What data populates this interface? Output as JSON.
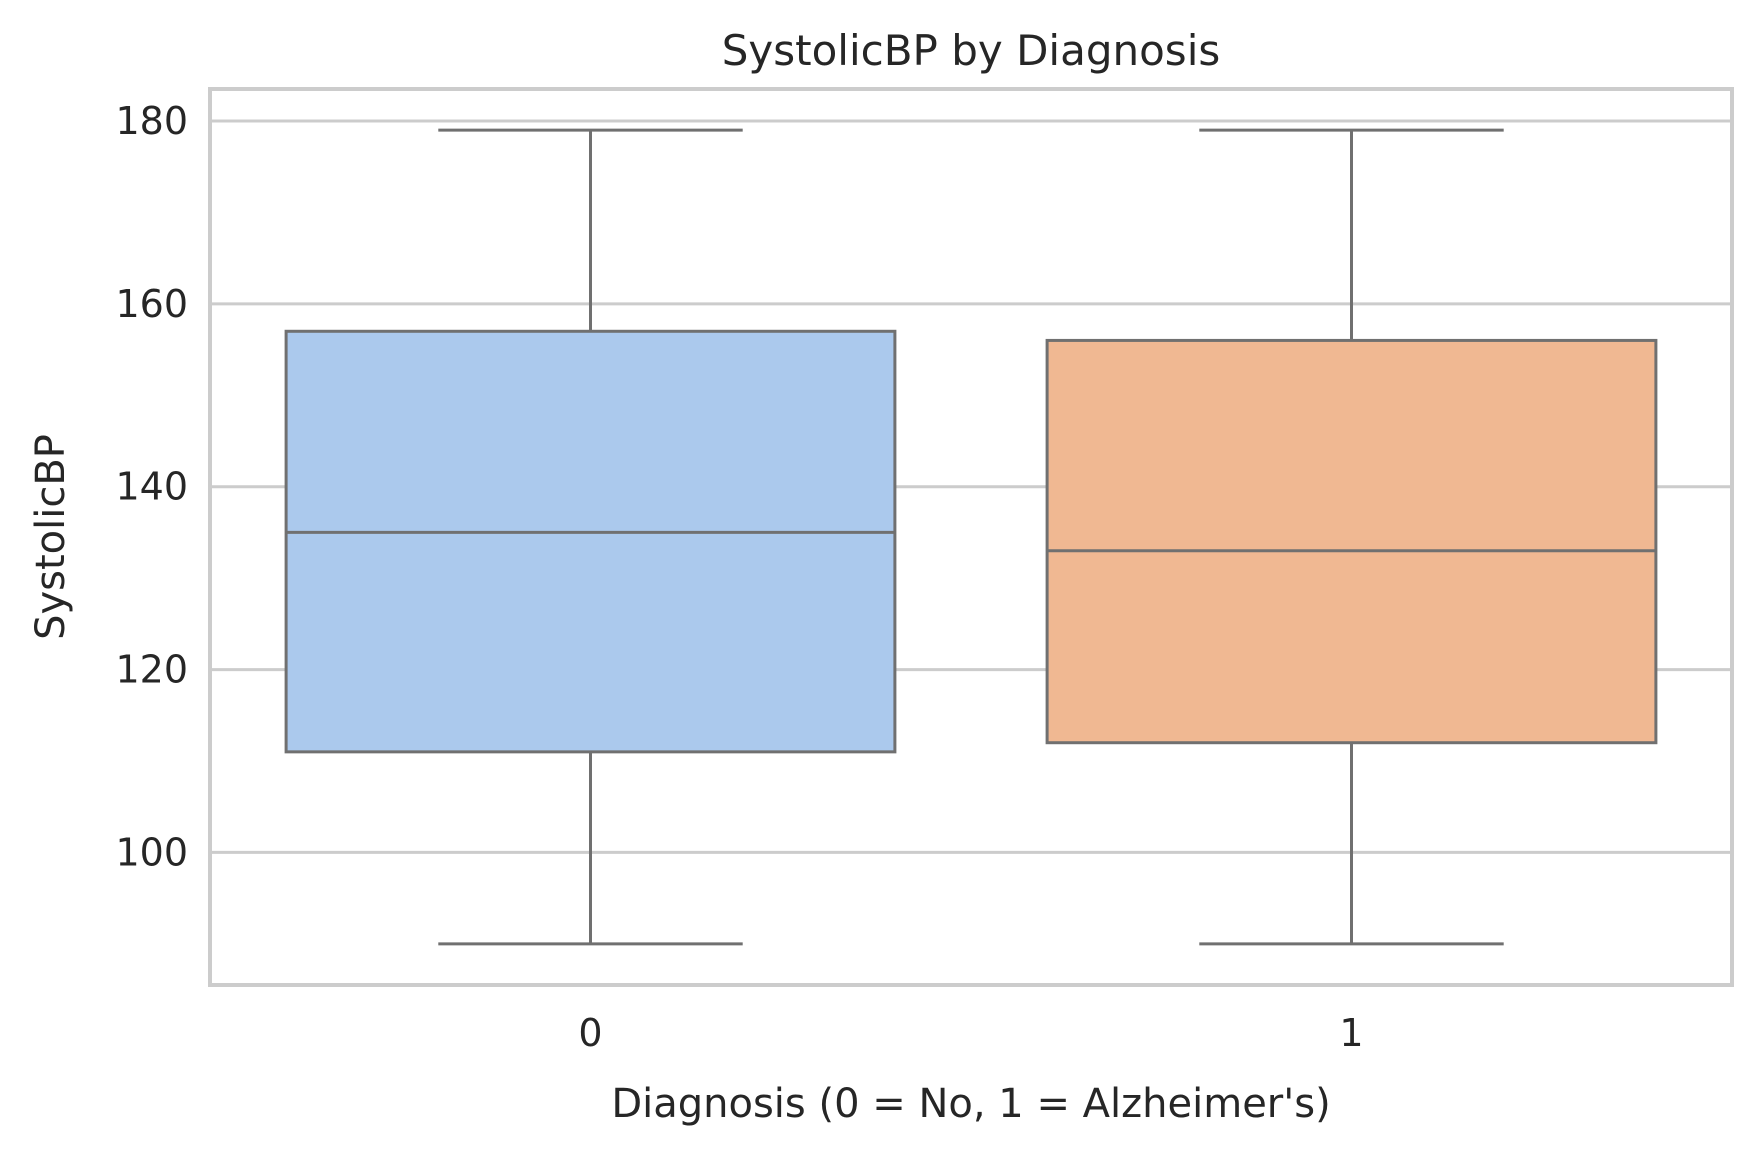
{
  "chart_data": {
    "type": "box",
    "title": "SystolicBP by Diagnosis",
    "xlabel": "Diagnosis (0 = No, 1 = Alzheimer's)",
    "ylabel": "SystolicBP",
    "ylim": [
      85.5,
      183.5
    ],
    "yticks": [
      100,
      120,
      140,
      160,
      180
    ],
    "ytick_labels": [
      "100",
      "120",
      "140",
      "160",
      "180"
    ],
    "categories": [
      "0",
      "1"
    ],
    "grid": "horizontal",
    "boxes": [
      {
        "category": "0",
        "whisker_low": 90,
        "q1": 111,
        "median": 135,
        "q3": 157,
        "whisker_high": 179,
        "color": "#abc9ed"
      },
      {
        "category": "1",
        "whisker_low": 90,
        "q1": 112,
        "median": 133,
        "q3": 156,
        "whisker_high": 179,
        "color": "#f0b892"
      }
    ],
    "colors": {
      "box_edge": "#707070",
      "grid": "#cccccc",
      "frame": "#cccccc",
      "text": "#262626"
    }
  }
}
